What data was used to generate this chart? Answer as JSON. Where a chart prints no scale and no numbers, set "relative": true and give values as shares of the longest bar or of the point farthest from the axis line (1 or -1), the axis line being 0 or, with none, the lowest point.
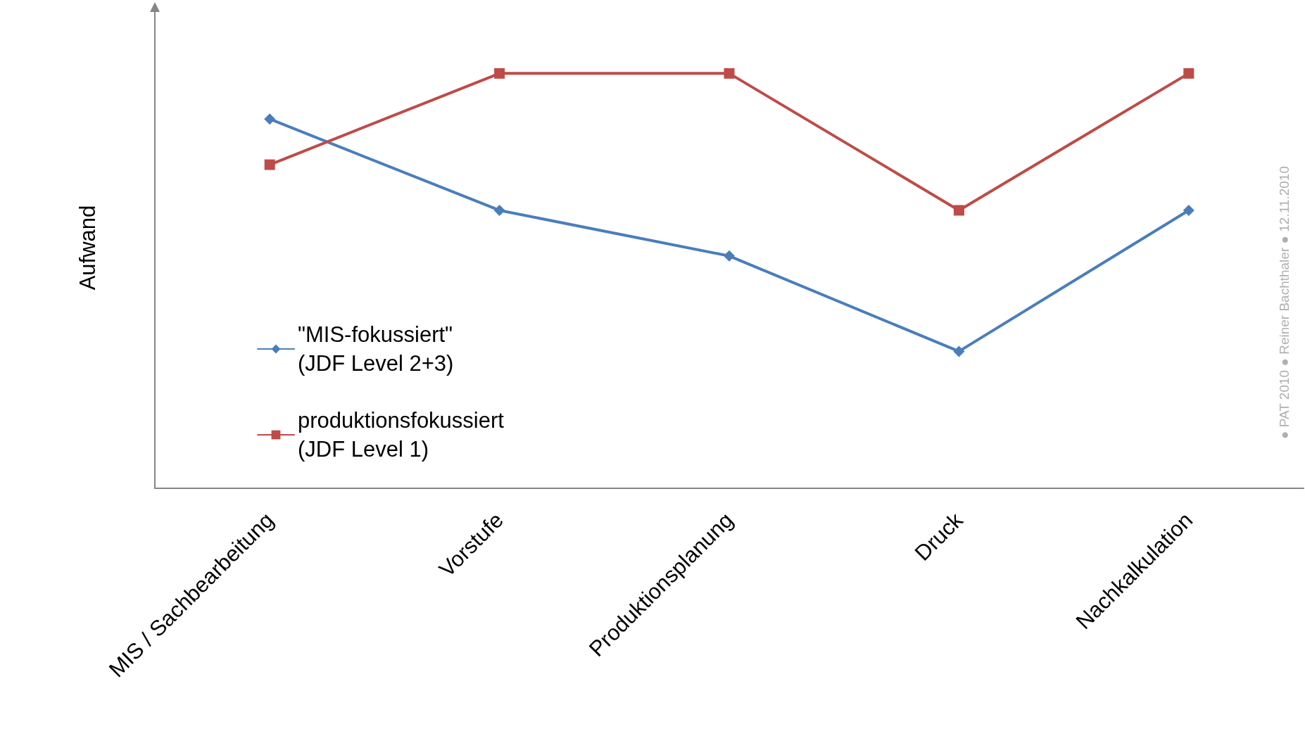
{
  "chart_data": {
    "type": "line",
    "relative": true,
    "ylabel": "Aufwand",
    "categories": [
      "MIS / Sachbearbeitung",
      "Vorstufe",
      "Produktionsplanung",
      "Druck",
      "Nachkalkulation"
    ],
    "series": [
      {
        "name": "\"MIS-fokussiert\"\n(JDF Level 2+3)",
        "color": "#4a7ebb",
        "marker": "diamond",
        "values": [
          0.89,
          0.67,
          0.56,
          0.33,
          0.67
        ]
      },
      {
        "name": "produktionsfokussiert\n(JDF Level 1)",
        "color": "#be4b48",
        "marker": "square",
        "values": [
          0.78,
          1,
          1,
          0.67,
          1
        ]
      }
    ],
    "legend": "bottom left",
    "grid": false,
    "line_style": "solid",
    "annotations": [
      "● PAT 2010 ● Reiner Bachthaler ● 12.11.2010"
    ]
  }
}
